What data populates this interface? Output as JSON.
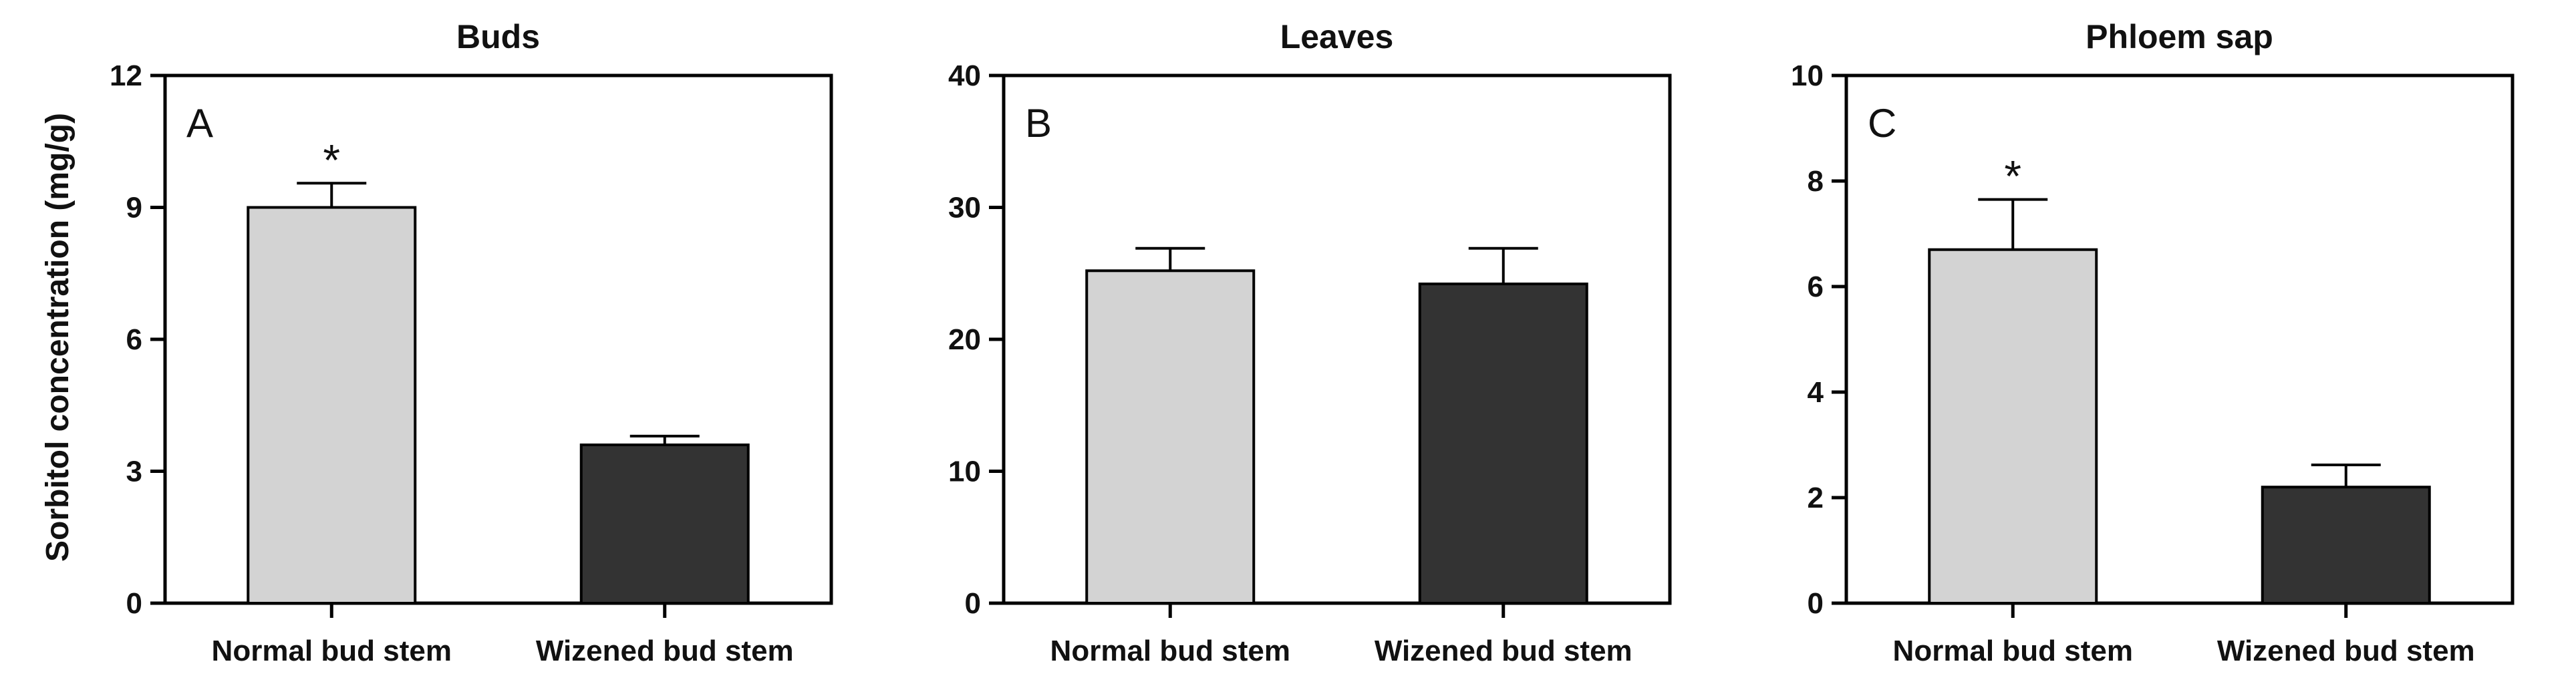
{
  "ylabel": "Sorbitol concentration (mg/g)",
  "colors": {
    "normal": "#d3d3d3",
    "wizened": "#333333",
    "axis": "#000000"
  },
  "chart_data": [
    {
      "type": "bar",
      "panel": "A",
      "title": "Buds",
      "categories": [
        "Normal bud stem",
        "Wizened bud stem"
      ],
      "values": [
        9.0,
        3.6
      ],
      "errors": [
        0.55,
        0.2
      ],
      "significance": [
        "*",
        ""
      ],
      "ylim": [
        0,
        12
      ],
      "yticks": [
        0,
        3,
        6,
        9,
        12
      ]
    },
    {
      "type": "bar",
      "panel": "B",
      "title": "Leaves",
      "categories": [
        "Normal bud stem",
        "Wizened bud stem"
      ],
      "values": [
        25.2,
        24.2
      ],
      "errors": [
        1.7,
        2.7
      ],
      "significance": [
        "",
        ""
      ],
      "ylim": [
        0,
        40
      ],
      "yticks": [
        0,
        10,
        20,
        30,
        40
      ]
    },
    {
      "type": "bar",
      "panel": "C",
      "title": "Phloem sap",
      "categories": [
        "Normal bud stem",
        "Wizened bud stem"
      ],
      "values": [
        6.7,
        2.2
      ],
      "errors": [
        0.95,
        0.42
      ],
      "significance": [
        "*",
        ""
      ],
      "ylim": [
        0,
        10
      ],
      "yticks": [
        0,
        2,
        4,
        6,
        8,
        10
      ]
    }
  ]
}
